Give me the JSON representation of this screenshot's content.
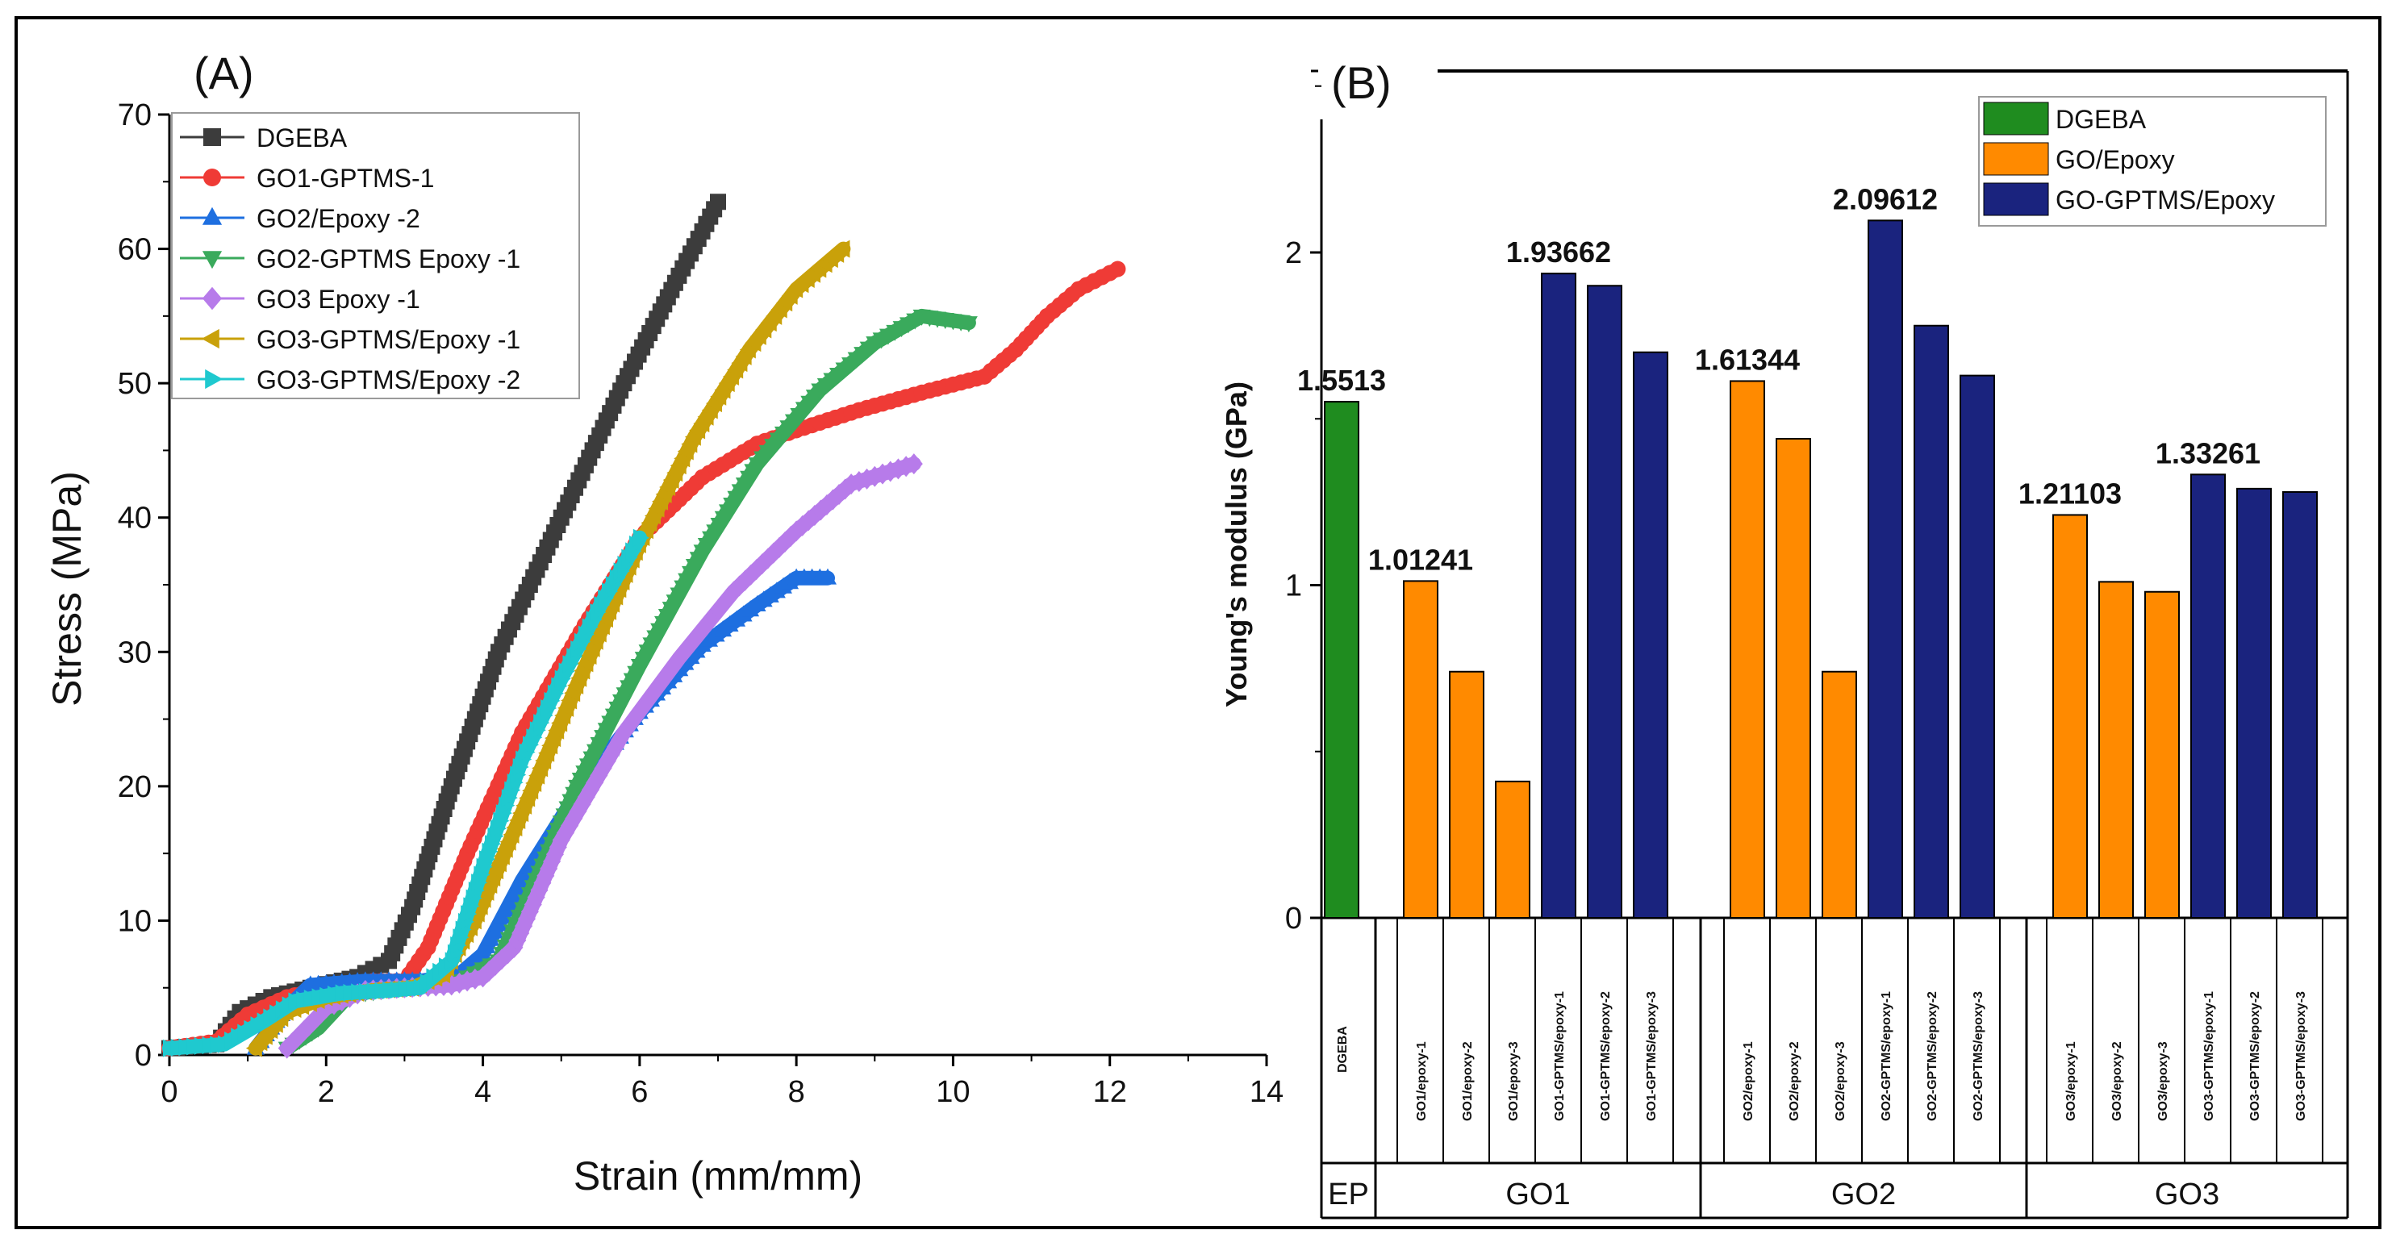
{
  "colors": {
    "frame": "#000000",
    "dgeba": "#3c3c3c",
    "go1_gptms_1": "#ef3b36",
    "go2_epoxy_2": "#1e6fe0",
    "go2_gptms_epoxy_1": "#3aaa5c",
    "go3_epoxy_1": "#b77bea",
    "go3_gptms_epoxy_1": "#c9a10a",
    "go3_gptms_epoxy_2": "#1fc9cf",
    "bar_dgeba": "#1f8c1f",
    "bar_go_epoxy": "#ff8a00",
    "bar_go_gptms": "#1a237e"
  },
  "chart_data": [
    {
      "panel_label": "(A)",
      "type": "line",
      "xlabel": "Strain (mm/mm)",
      "ylabel": "Stress (MPa)",
      "xlim": [
        0,
        14
      ],
      "ylim": [
        0,
        70
      ],
      "xticks": [
        "0",
        "2",
        "4",
        "6",
        "8",
        "10",
        "12",
        "14"
      ],
      "yticks": [
        "0",
        "10",
        "20",
        "30",
        "40",
        "50",
        "60",
        "70"
      ],
      "legend_position": "top-left",
      "series": [
        {
          "name": "DGEBA",
          "marker": "square",
          "color_key": "dgeba",
          "x": [
            0,
            0.6,
            0.9,
            1.3,
            1.8,
            2.4,
            2.8,
            3.1,
            3.6,
            4.2,
            5.0,
            5.8,
            6.5,
            7.0
          ],
          "y": [
            0.5,
            0.8,
            3.2,
            4.3,
            5.0,
            5.8,
            7.0,
            11.0,
            20.0,
            30.0,
            40.0,
            50.0,
            58.0,
            63.5
          ]
        },
        {
          "name": "GO1-GPTMS-1",
          "marker": "circle",
          "color_key": "go1_gptms_1",
          "x": [
            0,
            0.6,
            1.0,
            1.5,
            2.0,
            2.6,
            3.0,
            3.3,
            3.8,
            4.5,
            5.3,
            6.0,
            6.8,
            7.5,
            8.0,
            8.8,
            9.6,
            10.4,
            10.8,
            11.2,
            11.6,
            12.1
          ],
          "y": [
            0.5,
            1.0,
            3.0,
            4.3,
            5.0,
            5.5,
            5.5,
            8.0,
            15.0,
            24.0,
            32.0,
            38.5,
            43.0,
            45.5,
            46.5,
            48.0,
            49.3,
            50.5,
            52.5,
            55.0,
            57.0,
            58.5
          ]
        },
        {
          "name": "GO2/Epoxy -2",
          "marker": "triangle-up",
          "color_key": "go2_epoxy_2",
          "x": [
            1.1,
            1.5,
            1.8,
            2.5,
            3.2,
            3.7,
            4.0,
            4.5,
            5.2,
            6.0,
            6.8,
            7.5,
            8.0,
            8.4
          ],
          "y": [
            0.5,
            3.5,
            5.2,
            5.5,
            5.5,
            6.0,
            7.5,
            13.0,
            19.5,
            25.5,
            30.5,
            33.5,
            35.5,
            35.5
          ]
        },
        {
          "name": "GO2-GPTMS Epoxy -1",
          "marker": "triangle-down",
          "color_key": "go2_gptms_epoxy_1",
          "x": [
            1.5,
            1.9,
            2.3,
            3.0,
            3.7,
            4.2,
            4.6,
            5.2,
            6.0,
            6.8,
            7.5,
            8.3,
            9.0,
            9.6,
            10.2
          ],
          "y": [
            0.5,
            2.0,
            4.5,
            5.0,
            5.5,
            7.0,
            12.0,
            20.0,
            29.0,
            37.5,
            44.0,
            49.5,
            53.0,
            55.0,
            54.5
          ]
        },
        {
          "name": "GO3 Epoxy -1",
          "marker": "diamond",
          "color_key": "go3_epoxy_1",
          "x": [
            1.5,
            2.0,
            2.5,
            3.0,
            3.6,
            4.0,
            4.4,
            5.0,
            5.8,
            6.5,
            7.2,
            8.0,
            8.7,
            9.5
          ],
          "y": [
            0.5,
            3.5,
            4.8,
            5.0,
            5.2,
            5.8,
            8.0,
            16.0,
            24.0,
            29.5,
            34.5,
            39.0,
            42.5,
            44.0
          ]
        },
        {
          "name": "GO3-GPTMS/Epoxy -1",
          "marker": "triangle-left",
          "color_key": "go3_gptms_epoxy_1",
          "x": [
            1.1,
            1.5,
            2.0,
            2.6,
            3.1,
            3.5,
            3.9,
            4.5,
            5.2,
            6.0,
            6.7,
            7.4,
            8.0,
            8.6
          ],
          "y": [
            0.5,
            3.2,
            4.3,
            4.8,
            5.0,
            6.0,
            10.0,
            18.0,
            27.5,
            38.0,
            46.0,
            52.5,
            57.0,
            60.0
          ]
        },
        {
          "name": "GO3-GPTMS/Epoxy -2",
          "marker": "triangle-right",
          "color_key": "go3_gptms_epoxy_2",
          "x": [
            0,
            0.7,
            1.2,
            1.6,
            2.2,
            2.8,
            3.2,
            3.6,
            4.0,
            4.5,
            5.0,
            5.5,
            6.0
          ],
          "y": [
            0.5,
            0.8,
            2.5,
            4.0,
            4.6,
            4.8,
            5.0,
            7.0,
            14.0,
            22.0,
            28.0,
            33.5,
            38.5
          ]
        }
      ]
    },
    {
      "panel_label": "(B)",
      "type": "bar",
      "ylabel": "Young's modulus (GPa)",
      "ylim": [
        0,
        2.4
      ],
      "yticks": [
        "0",
        "1",
        "2"
      ],
      "legend_position": "top-right",
      "legend": [
        {
          "label": "DGEBA",
          "color_key": "bar_dgeba"
        },
        {
          "label": "GO/Epoxy",
          "color_key": "bar_go_epoxy"
        },
        {
          "label": "GO-GPTMS/Epoxy",
          "color_key": "bar_go_gptms"
        }
      ],
      "groups": [
        {
          "label": "EP",
          "bars": [
            {
              "category": "DGEBA",
              "value": 1.5513,
              "kind": "bar_dgeba",
              "label": "1.5513"
            }
          ]
        },
        {
          "label": "GO1",
          "bars": [
            {
              "category": "GO1/epoxy-1",
              "value": 1.01241,
              "kind": "bar_go_epoxy",
              "label": "1.01241"
            },
            {
              "category": "GO1/epoxy-2",
              "value": 0.74,
              "kind": "bar_go_epoxy",
              "label": ""
            },
            {
              "category": "GO1/epoxy-3",
              "value": 0.41,
              "kind": "bar_go_epoxy",
              "label": ""
            },
            {
              "category": "GO1-GPTMS/epoxy-1",
              "value": 1.93662,
              "kind": "bar_go_gptms",
              "label": "1.93662"
            },
            {
              "category": "GO1-GPTMS/epoxy-2",
              "value": 1.9,
              "kind": "bar_go_gptms",
              "label": ""
            },
            {
              "category": "GO1-GPTMS/epoxy-3",
              "value": 1.7,
              "kind": "bar_go_gptms",
              "label": ""
            }
          ]
        },
        {
          "label": "GO2",
          "bars": [
            {
              "category": "GO2/epoxy-1",
              "value": 1.61344,
              "kind": "bar_go_epoxy",
              "label": "1.61344"
            },
            {
              "category": "GO2/epoxy-2",
              "value": 1.44,
              "kind": "bar_go_epoxy",
              "label": ""
            },
            {
              "category": "GO2/epoxy-3",
              "value": 0.74,
              "kind": "bar_go_epoxy",
              "label": ""
            },
            {
              "category": "GO2-GPTMS/epoxy-1",
              "value": 2.09612,
              "kind": "bar_go_gptms",
              "label": "2.09612"
            },
            {
              "category": "GO2-GPTMS/epoxy-2",
              "value": 1.78,
              "kind": "bar_go_gptms",
              "label": ""
            },
            {
              "category": "GO2-GPTMS/epoxy-3",
              "value": 1.63,
              "kind": "bar_go_gptms",
              "label": ""
            }
          ]
        },
        {
          "label": "GO3",
          "bars": [
            {
              "category": "GO3/epoxy-1",
              "value": 1.21103,
              "kind": "bar_go_epoxy",
              "label": "1.21103"
            },
            {
              "category": "GO3/epoxy-2",
              "value": 1.01,
              "kind": "bar_go_epoxy",
              "label": ""
            },
            {
              "category": "GO3/epoxy-3",
              "value": 0.98,
              "kind": "bar_go_epoxy",
              "label": ""
            },
            {
              "category": "GO3-GPTMS/epoxy-1",
              "value": 1.33261,
              "kind": "bar_go_gptms",
              "label": "1.33261"
            },
            {
              "category": "GO3-GPTMS/epoxy-2",
              "value": 1.29,
              "kind": "bar_go_gptms",
              "label": ""
            },
            {
              "category": "GO3-GPTMS/epoxy-3",
              "value": 1.28,
              "kind": "bar_go_gptms",
              "label": ""
            }
          ]
        }
      ]
    }
  ]
}
